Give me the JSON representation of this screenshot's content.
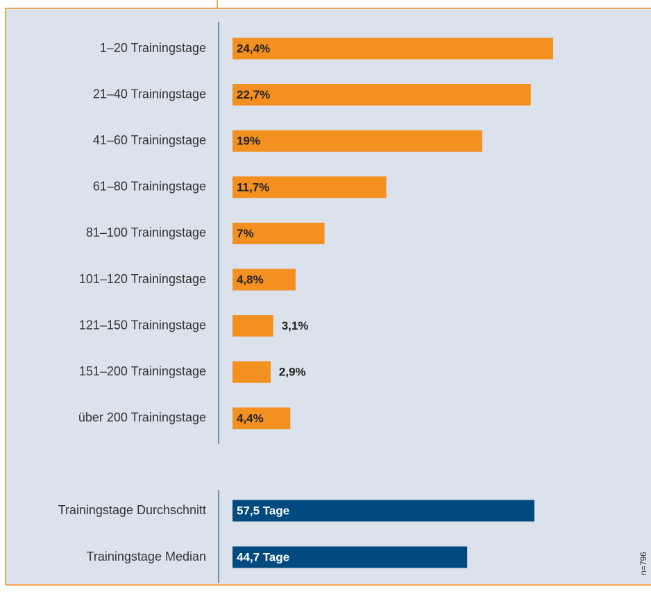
{
  "chart_data": [
    {
      "type": "bar",
      "orientation": "horizontal",
      "color": "#f39020",
      "categories": [
        "1–20 Trainingstage",
        "21–40 Trainingstage",
        "41–60 Trainingstage",
        "61–80 Trainingstage",
        "81–100 Trainingstage",
        "101–120 Trainingstage",
        "121–150 Trainingstage",
        "151–200 Trainingstage",
        "über 200 Trainingstage"
      ],
      "values": [
        24.4,
        22.7,
        19,
        11.7,
        7,
        4.8,
        3.1,
        2.9,
        4.4
      ],
      "value_labels": [
        "24,4%",
        "22,7%",
        "19%",
        "11,7%",
        "7%",
        "4,8%",
        "3,1%",
        "2,9%",
        "4,4%"
      ]
    },
    {
      "type": "bar",
      "orientation": "horizontal",
      "color": "#004a80",
      "categories": [
        "Trainingstage Durchschnitt",
        "Trainingstage Median"
      ],
      "values": [
        57.5,
        44.7
      ],
      "value_labels": [
        "57,5 Tage",
        "44,7 Tage"
      ]
    }
  ],
  "footnote": "n=796"
}
